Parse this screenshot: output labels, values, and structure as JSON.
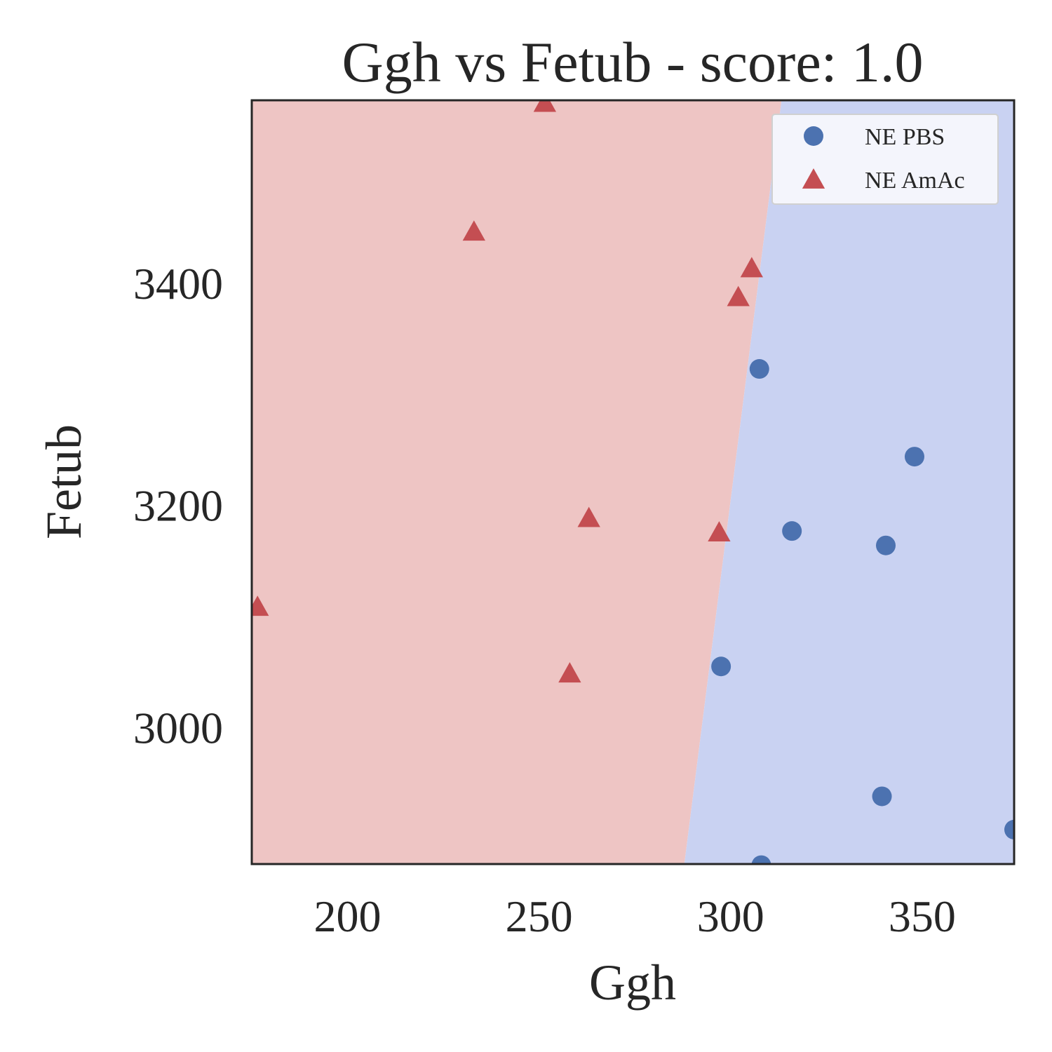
{
  "chart_data": {
    "type": "scatter",
    "title": "Ggh vs Fetub - score: 1.0",
    "xlabel": "Ggh",
    "ylabel": "Fetub",
    "xlim": [
      175,
      374
    ],
    "ylim": [
      2877,
      3565
    ],
    "xticks": [
      200,
      250,
      300,
      350
    ],
    "yticks": [
      3000,
      3200,
      3400
    ],
    "grid": false,
    "legend_position": "top-right",
    "decision_boundary": [
      [
        287.8,
        2877
      ],
      [
        313.4,
        3565
      ]
    ],
    "regions": [
      {
        "side": "left",
        "color": "#eec5c4"
      },
      {
        "side": "right",
        "color": "#c9d2f2"
      }
    ],
    "series": [
      {
        "name": "NE PBS",
        "marker": "circle",
        "color": "#4c72b0",
        "points": [
          [
            307.5,
            3323
          ],
          [
            348,
            3244
          ],
          [
            316,
            3177
          ],
          [
            340.5,
            3164
          ],
          [
            297.5,
            3055
          ],
          [
            339.5,
            2938
          ],
          [
            374,
            2908
          ],
          [
            308,
            2876
          ]
        ]
      },
      {
        "name": "NE AmAc",
        "marker": "triangle",
        "color": "#c44e52",
        "points": [
          [
            251.5,
            3564
          ],
          [
            233,
            3448
          ],
          [
            305.5,
            3415
          ],
          [
            302,
            3389
          ],
          [
            263,
            3190
          ],
          [
            297,
            3177
          ],
          [
            176.5,
            3110
          ],
          [
            258,
            3050
          ]
        ]
      }
    ]
  }
}
